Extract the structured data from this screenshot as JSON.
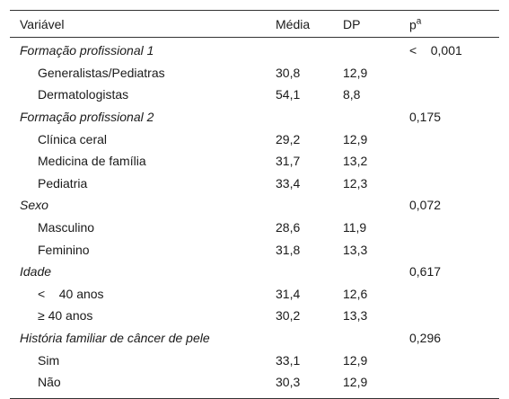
{
  "table": {
    "header": {
      "variable": "Variável",
      "mean": "Média",
      "sd": "DP",
      "p": "p",
      "p_sup": "a"
    },
    "groups": [
      {
        "label": "Formação profissional 1",
        "p": "<    0,001",
        "items": [
          {
            "label": "Generalistas/Pediatras",
            "mean": "30,8",
            "sd": "12,9"
          },
          {
            "label": "Dermatologistas",
            "mean": "54,1",
            "sd": "8,8"
          }
        ]
      },
      {
        "label": "Formação profissional 2",
        "p": "0,175",
        "items": [
          {
            "label": "Clínica ceral",
            "mean": "29,2",
            "sd": "12,9"
          },
          {
            "label": "Medicina de família",
            "mean": "31,7",
            "sd": "13,2"
          },
          {
            "label": "Pediatria",
            "mean": "33,4",
            "sd": "12,3"
          }
        ]
      },
      {
        "label": "Sexo",
        "p": "0,072",
        "items": [
          {
            "label": "Masculino",
            "mean": "28,6",
            "sd": "11,9"
          },
          {
            "label": "Feminino",
            "mean": "31,8",
            "sd": "13,3"
          }
        ]
      },
      {
        "label": "Idade",
        "p": "0,617",
        "items": [
          {
            "label": "<    40 anos",
            "mean": "31,4",
            "sd": "12,6"
          },
          {
            "label": "≥ 40 anos",
            "mean": "30,2",
            "sd": "13,3"
          }
        ]
      },
      {
        "label": "História familiar de câncer de pele",
        "p": "0,296",
        "items": [
          {
            "label": "Sim",
            "mean": "33,1",
            "sd": "12,9"
          },
          {
            "label": "Não",
            "mean": "30,3",
            "sd": "12,9"
          }
        ]
      }
    ]
  }
}
